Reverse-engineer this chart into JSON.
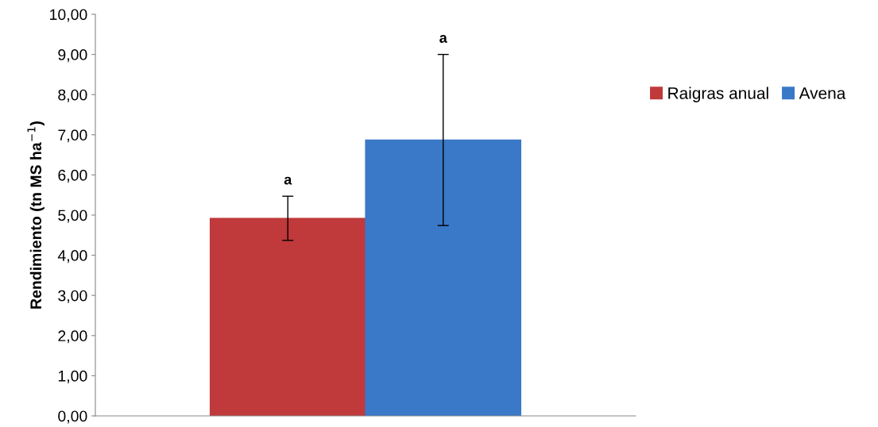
{
  "chart_data": {
    "type": "bar",
    "ylabel": "Rendimiento (tn MS ha$^{−1}$)",
    "categories": [
      null
    ],
    "series": [
      {
        "name": "Raigras anual",
        "color": "#c0393b",
        "values": [
          4.92
        ],
        "errors": [
          0.55
        ]
      },
      {
        "name": "Avena",
        "color": "#3a78c8",
        "values": [
          6.87
        ],
        "errors": [
          2.13
        ]
      }
    ],
    "annotations": [
      "a",
      "a"
    ],
    "ylim": [
      0,
      10
    ],
    "yticks": [
      {
        "value": 0,
        "label": "0,00"
      },
      {
        "value": 1,
        "label": "1,00"
      },
      {
        "value": 2,
        "label": "2,00"
      },
      {
        "value": 3,
        "label": "3,00"
      },
      {
        "value": 4,
        "label": "4,00"
      },
      {
        "value": 5,
        "label": "5,00"
      },
      {
        "value": 6,
        "label": "6,00"
      },
      {
        "value": 7,
        "label": "7,00"
      },
      {
        "value": 8,
        "label": "8,00"
      },
      {
        "value": 9,
        "label": "9,00"
      },
      {
        "value": 10,
        "label": "10,00"
      }
    ],
    "legend": "right",
    "grid": false
  }
}
